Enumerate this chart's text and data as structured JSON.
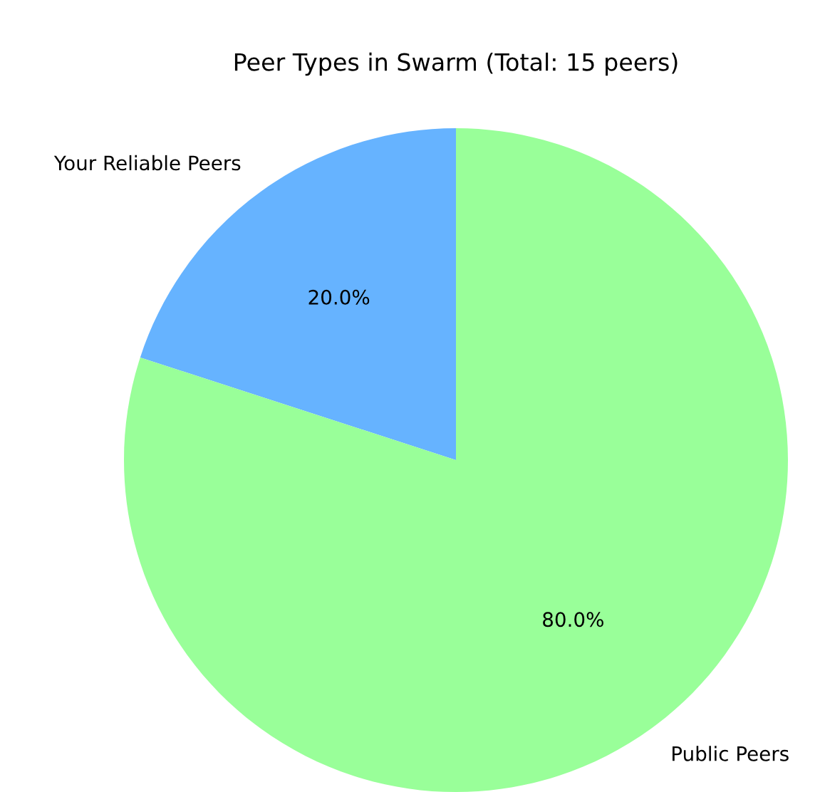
{
  "chart_data": {
    "type": "pie",
    "title": "Peer Types in Swarm (Total: 15 peers)",
    "categories": [
      "Your Reliable Peers",
      "Public Peers"
    ],
    "values": [
      20,
      80
    ],
    "colors": [
      "#66b3ff",
      "#99ff99"
    ],
    "value_labels": [
      "20.0%",
      "80.0%"
    ]
  }
}
